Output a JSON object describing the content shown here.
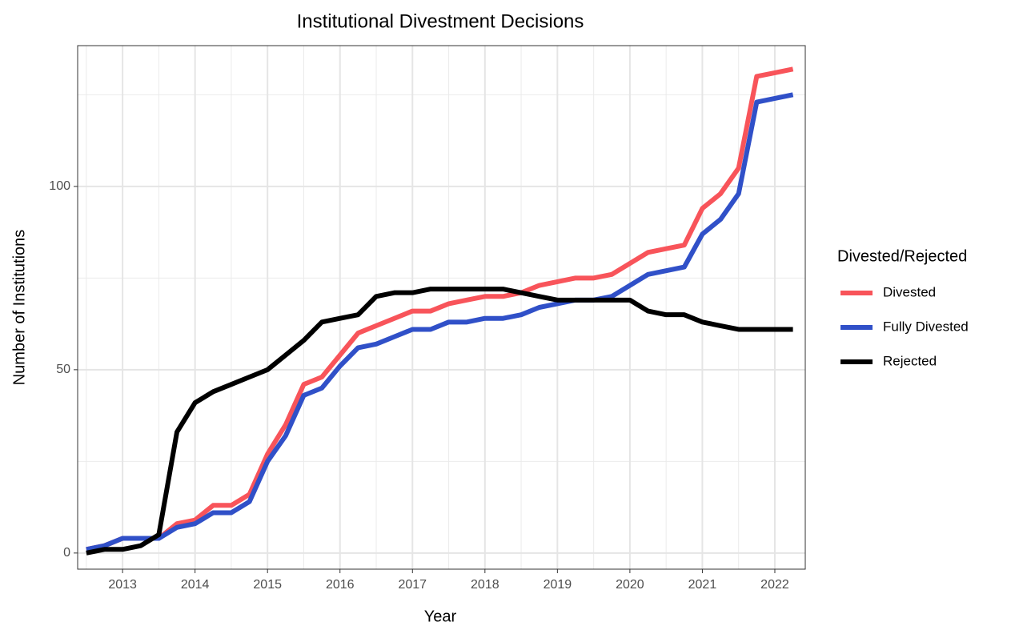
{
  "chart_data": {
    "type": "line",
    "title": "Institutional Divestment Decisions",
    "x_label": "Year",
    "y_label": "Number of Institutions",
    "legend_title": "Divested/Rejected",
    "x": [
      2012.5,
      2012.75,
      2013,
      2013.25,
      2013.5,
      2013.75,
      2014,
      2014.25,
      2014.5,
      2014.75,
      2015,
      2015.25,
      2015.5,
      2015.75,
      2016,
      2016.25,
      2016.5,
      2016.75,
      2017,
      2017.25,
      2017.5,
      2017.75,
      2018,
      2018.25,
      2018.5,
      2018.75,
      2019,
      2019.25,
      2019.5,
      2019.75,
      2020,
      2020.25,
      2020.5,
      2020.75,
      2021,
      2021.25,
      2021.5,
      2021.75,
      2022,
      2022.25
    ],
    "series": [
      {
        "name": "Divested",
        "color": "#f8545a",
        "values": [
          1,
          2,
          4,
          4,
          4,
          8,
          9,
          13,
          13,
          16,
          27,
          35,
          46,
          48,
          54,
          60,
          62,
          64,
          66,
          66,
          68,
          69,
          70,
          70,
          71,
          73,
          74,
          75,
          75,
          76,
          79,
          82,
          83,
          84,
          94,
          98,
          105,
          130,
          131,
          132
        ]
      },
      {
        "name": "Fully Divested",
        "color": "#3050c8",
        "values": [
          1,
          2,
          4,
          4,
          4,
          7,
          8,
          11,
          11,
          14,
          25,
          32,
          43,
          45,
          51,
          56,
          57,
          59,
          61,
          61,
          63,
          63,
          64,
          64,
          65,
          67,
          68,
          69,
          69,
          70,
          73,
          76,
          77,
          78,
          87,
          91,
          98,
          123,
          124,
          125
        ]
      },
      {
        "name": "Rejected",
        "color": "#000000",
        "values": [
          0,
          1,
          1,
          2,
          5,
          33,
          41,
          44,
          46,
          48,
          50,
          54,
          58,
          63,
          64,
          65,
          70,
          71,
          71,
          72,
          72,
          72,
          72,
          72,
          71,
          70,
          69,
          69,
          69,
          69,
          69,
          66,
          65,
          65,
          63,
          62,
          61,
          61,
          61,
          61
        ]
      }
    ],
    "xlim": [
      2012.38,
      2022.42
    ],
    "xticks": [
      2013,
      2014,
      2015,
      2016,
      2017,
      2018,
      2019,
      2020,
      2021,
      2022
    ],
    "ylim": [
      -4.4,
      138.4
    ],
    "yticks": [
      0,
      50,
      100
    ],
    "grid": true,
    "legend_position": "right"
  }
}
